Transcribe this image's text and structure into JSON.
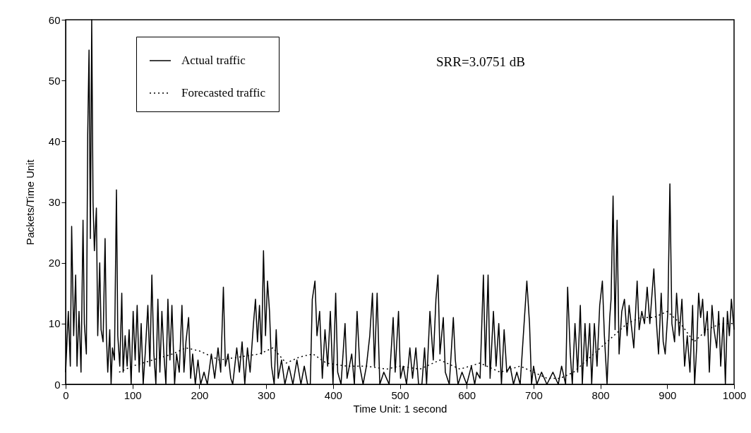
{
  "chart_data": {
    "type": "line",
    "xlabel": "Time Unit: 1 second",
    "ylabel": "Packets/Time Unit",
    "xlim": [
      0,
      1000
    ],
    "ylim": [
      0,
      60
    ],
    "xticks": [
      0,
      100,
      200,
      300,
      400,
      500,
      600,
      700,
      800,
      900,
      1000
    ],
    "yticks": [
      0,
      10,
      20,
      30,
      40,
      50,
      60
    ],
    "grid": false,
    "legend": "top left",
    "marker": "none",
    "annotations": [
      "SRR=3.0751 dB"
    ],
    "series": [
      {
        "name": "Actual traffic",
        "color": "#000000",
        "line_style": "solid",
        "x": [
          0,
          4,
          7,
          9,
          12,
          15,
          17,
          20,
          23,
          26,
          28,
          31,
          33,
          35,
          37,
          39,
          41,
          43,
          46,
          48,
          51,
          53,
          56,
          59,
          61,
          63,
          66,
          68,
          70,
          73,
          76,
          78,
          81,
          84,
          86,
          89,
          92,
          95,
          98,
          101,
          104,
          107,
          110,
          113,
          116,
          119,
          123,
          126,
          129,
          132,
          135,
          138,
          141,
          144,
          147,
          150,
          153,
          156,
          159,
          163,
          166,
          170,
          174,
          177,
          180,
          184,
          187,
          190,
          194,
          198,
          202,
          207,
          212,
          218,
          223,
          228,
          232,
          236,
          239,
          243,
          247,
          250,
          256,
          260,
          264,
          268,
          272,
          276,
          281,
          284,
          287,
          290,
          293,
          296,
          299,
          302,
          305,
          308,
          312,
          315,
          318,
          323,
          328,
          334,
          340,
          346,
          352,
          357,
          362,
          366,
          369,
          373,
          376,
          380,
          384,
          388,
          392,
          396,
          400,
          404,
          407,
          412,
          418,
          421,
          428,
          432,
          436,
          440,
          445,
          450,
          455,
          459,
          462,
          466,
          470,
          476,
          480,
          484,
          490,
          493,
          498,
          501,
          505,
          510,
          515,
          519,
          524,
          528,
          533,
          537,
          540,
          545,
          550,
          554,
          557,
          560,
          565,
          568,
          574,
          580,
          583,
          587,
          593,
          600,
          607,
          612,
          615,
          620,
          625,
          628,
          632,
          635,
          640,
          644,
          648,
          652,
          656,
          660,
          665,
          670,
          675,
          680,
          690,
          694,
          697,
          700,
          705,
          712,
          720,
          729,
          737,
          742,
          748,
          751,
          755,
          758,
          762,
          766,
          770,
          773,
          777,
          780,
          784,
          787,
          791,
          795,
          799,
          803,
          806,
          810,
          814,
          816,
          819,
          822,
          825,
          828,
          832,
          836,
          840,
          843,
          847,
          850,
          855,
          858,
          862,
          866,
          870,
          874,
          880,
          884,
          887,
          891,
          894,
          897,
          901,
          904,
          907,
          911,
          914,
          918,
          922,
          926,
          930,
          934,
          938,
          941,
          944,
          947,
          950,
          953,
          956,
          960,
          963,
          967,
          970,
          974,
          977,
          980,
          984,
          987,
          990,
          993,
          996,
          1000
        ],
        "values": [
          2,
          12,
          3,
          26,
          8,
          18,
          3,
          12,
          2,
          27,
          10,
          5,
          41,
          55,
          24,
          60,
          30,
          22,
          29,
          8,
          20,
          9,
          7,
          24,
          8,
          2,
          9,
          0,
          6,
          4,
          32,
          8,
          3,
          15,
          2,
          8,
          3,
          9,
          0,
          12,
          4,
          13,
          2,
          10,
          0,
          5,
          13,
          3,
          18,
          5,
          0,
          14,
          2,
          12,
          5,
          0,
          14,
          4,
          13,
          0,
          5,
          2,
          13,
          2,
          7,
          11,
          1,
          5,
          0,
          4,
          0,
          2,
          0,
          5,
          1,
          6,
          2,
          16,
          3,
          5,
          1,
          0,
          6,
          2,
          7,
          0,
          6,
          2,
          10,
          14,
          7,
          13,
          5,
          22,
          8,
          17,
          12,
          3,
          0,
          9,
          1,
          4,
          0,
          3,
          0,
          4,
          0,
          3,
          0,
          0,
          14,
          17,
          8,
          12,
          1,
          9,
          3,
          12,
          0,
          15,
          2,
          0,
          10,
          1,
          5,
          0,
          12,
          3,
          0,
          3,
          8,
          15,
          3,
          15,
          0,
          2,
          1,
          0,
          11,
          2,
          12,
          1,
          3,
          0,
          6,
          1,
          6,
          0,
          0,
          6,
          0,
          12,
          4,
          14,
          18,
          5,
          11,
          2,
          0,
          11,
          4,
          0,
          2,
          0,
          3,
          0,
          2,
          1,
          18,
          3,
          18,
          1,
          12,
          3,
          10,
          0,
          9,
          2,
          3,
          0,
          2,
          0,
          17,
          10,
          0,
          3,
          0,
          2,
          0,
          2,
          0,
          3,
          0,
          16,
          5,
          0,
          10,
          2,
          13,
          0,
          10,
          3,
          10,
          0,
          10,
          3,
          13,
          17,
          8,
          0,
          11,
          14,
          31,
          9,
          27,
          5,
          12,
          14,
          8,
          13,
          9,
          6,
          17,
          9,
          12,
          10,
          16,
          10,
          19,
          10,
          5,
          15,
          7,
          5,
          12,
          33,
          10,
          7,
          15,
          8,
          14,
          3,
          8,
          2,
          13,
          0,
          6,
          15,
          11,
          14,
          8,
          12,
          2,
          13,
          9,
          6,
          12,
          3,
          11,
          0,
          12,
          8,
          14,
          9
        ]
      },
      {
        "name": "Forecasted traffic",
        "color": "#000000",
        "line_style": "dotted",
        "x": [
          80,
          100,
          130,
          160,
          180,
          200,
          230,
          260,
          290,
          310,
          330,
          350,
          370,
          390,
          420,
          450,
          480,
          500,
          530,
          560,
          590,
          620,
          650,
          680,
          700,
          720,
          740,
          760,
          780,
          800,
          820,
          840,
          860,
          880,
          900,
          920,
          940,
          960,
          980,
          1000
        ],
        "values": [
          2,
          3,
          4,
          5,
          6,
          5.5,
          4,
          4.5,
          5,
          6,
          3.5,
          4.5,
          5,
          3.5,
          3,
          3,
          2.5,
          3,
          2.5,
          4,
          2.5,
          3.5,
          2,
          3,
          2,
          1,
          1,
          2,
          4,
          6,
          8,
          10,
          11,
          11,
          12,
          10,
          7,
          9,
          10,
          10
        ]
      }
    ]
  }
}
